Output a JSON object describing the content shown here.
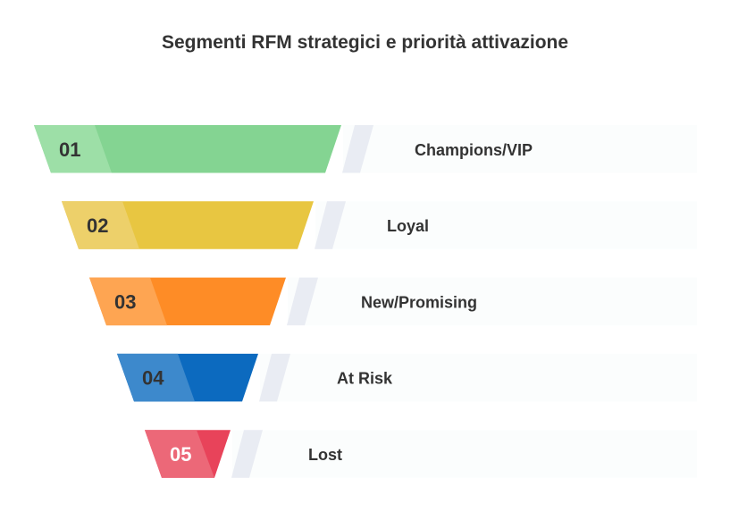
{
  "title": "Segmenti RFM strategici e priorità attivazione",
  "stages": [
    {
      "number": "01",
      "label": "Champions/VIP",
      "color": "#84d492",
      "light": "#9ddfa7",
      "number_color": "#333333"
    },
    {
      "number": "02",
      "label": "Loyal",
      "color": "#e8c641",
      "light": "#edd06a",
      "number_color": "#333333"
    },
    {
      "number": "03",
      "label": "New/Promising",
      "color": "#fe8c26",
      "light": "#fea552",
      "number_color": "#333333"
    },
    {
      "number": "04",
      "label": "At Risk",
      "color": "#0c6abf",
      "light": "#3d89cc",
      "number_color": "#333333"
    },
    {
      "number": "05",
      "label": "Lost",
      "color": "#e8435a",
      "light": "#ec6878",
      "number_color": "#ffffff"
    }
  ]
}
